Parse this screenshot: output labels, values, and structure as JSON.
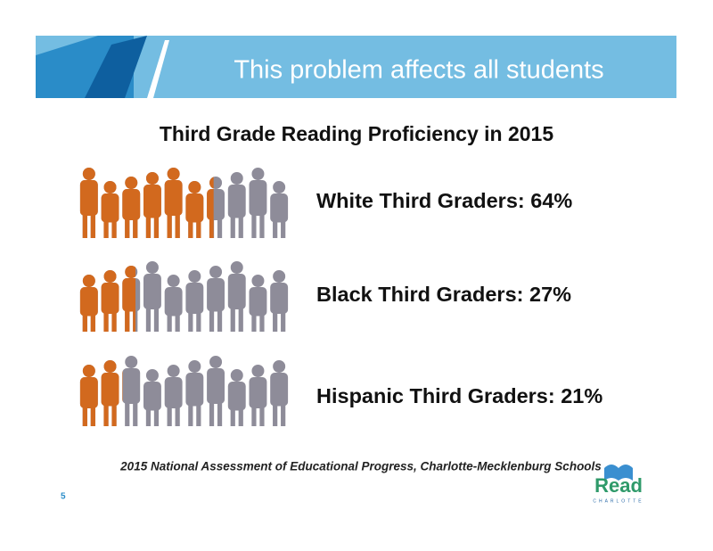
{
  "header": {
    "title": "This problem affects all students"
  },
  "chart_data": {
    "type": "pictograph",
    "title": "Third Grade Reading Proficiency in 2015",
    "categories": [
      "White Third Graders: 64%",
      "Black Third Graders: 27%",
      "Hispanic Third Graders: 21%"
    ],
    "values": [
      64,
      27,
      21
    ],
    "xlim": [
      0,
      100
    ],
    "color": "#d2691e",
    "rest_color": "#8e8c99"
  },
  "footer": {
    "source": "2015 National Assessment of Educational Progress, Charlotte-Mecklenburg Schools",
    "page": "5"
  },
  "logo": {
    "name": "Read",
    "city": "CHARLOTTE"
  }
}
